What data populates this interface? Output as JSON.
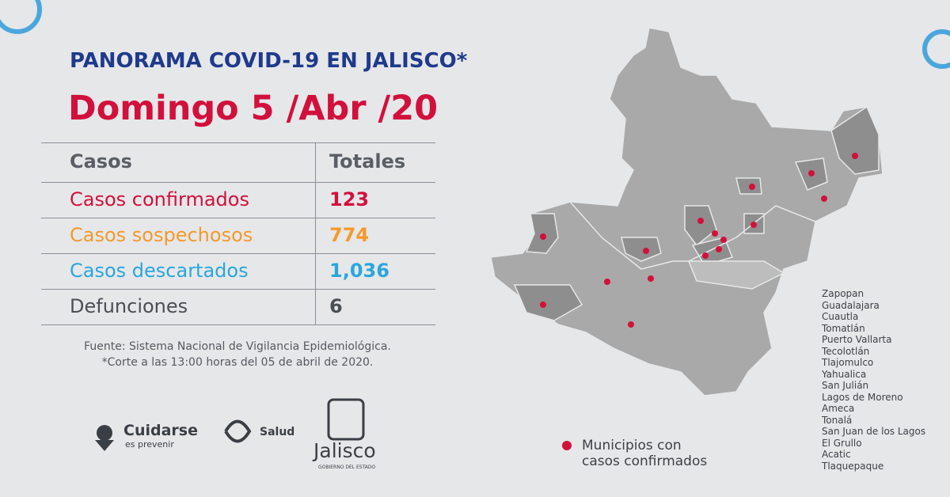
{
  "header": {
    "title": "PANORAMA COVID-19 EN JALISCO*",
    "date": "Domingo 5 /Abr /20"
  },
  "table": {
    "header": [
      "Casos",
      "Totales"
    ],
    "rows": [
      [
        "Casos confirmados",
        "123"
      ],
      [
        "Casos sospechosos",
        "774"
      ],
      [
        "Casos descartados",
        "1,036"
      ],
      [
        "Defunciones",
        "6"
      ]
    ]
  },
  "source": [
    "Fuente: Sistema Nacional de Vigilancia Epidemiológica.",
    "*Corte a las 13:00 horas del 05 de abril de 2020."
  ],
  "logos": {
    "cuidarse": "Cuidarse",
    "cuidarse_sub": "es prevenir",
    "salud": "Salud",
    "jalisco": "Jalisco",
    "jalisco_sub": "GOBIERNO DEL ESTADO"
  },
  "legend": [
    "Municipios con",
    "casos confirmados"
  ],
  "municipalities": [
    "Zapopan",
    "Guadalajara",
    "Cuautla",
    "Tomatlán",
    "Puerto Vallarta",
    "Tecolotlán",
    "Tlajomulco",
    "Yahualica",
    "San Julián",
    "Lagos de Moreno",
    "Ameca",
    "Tonalá",
    "San Juan de los Lagos",
    "El Grullo",
    "Acatic",
    "Tlaquepaque"
  ]
}
